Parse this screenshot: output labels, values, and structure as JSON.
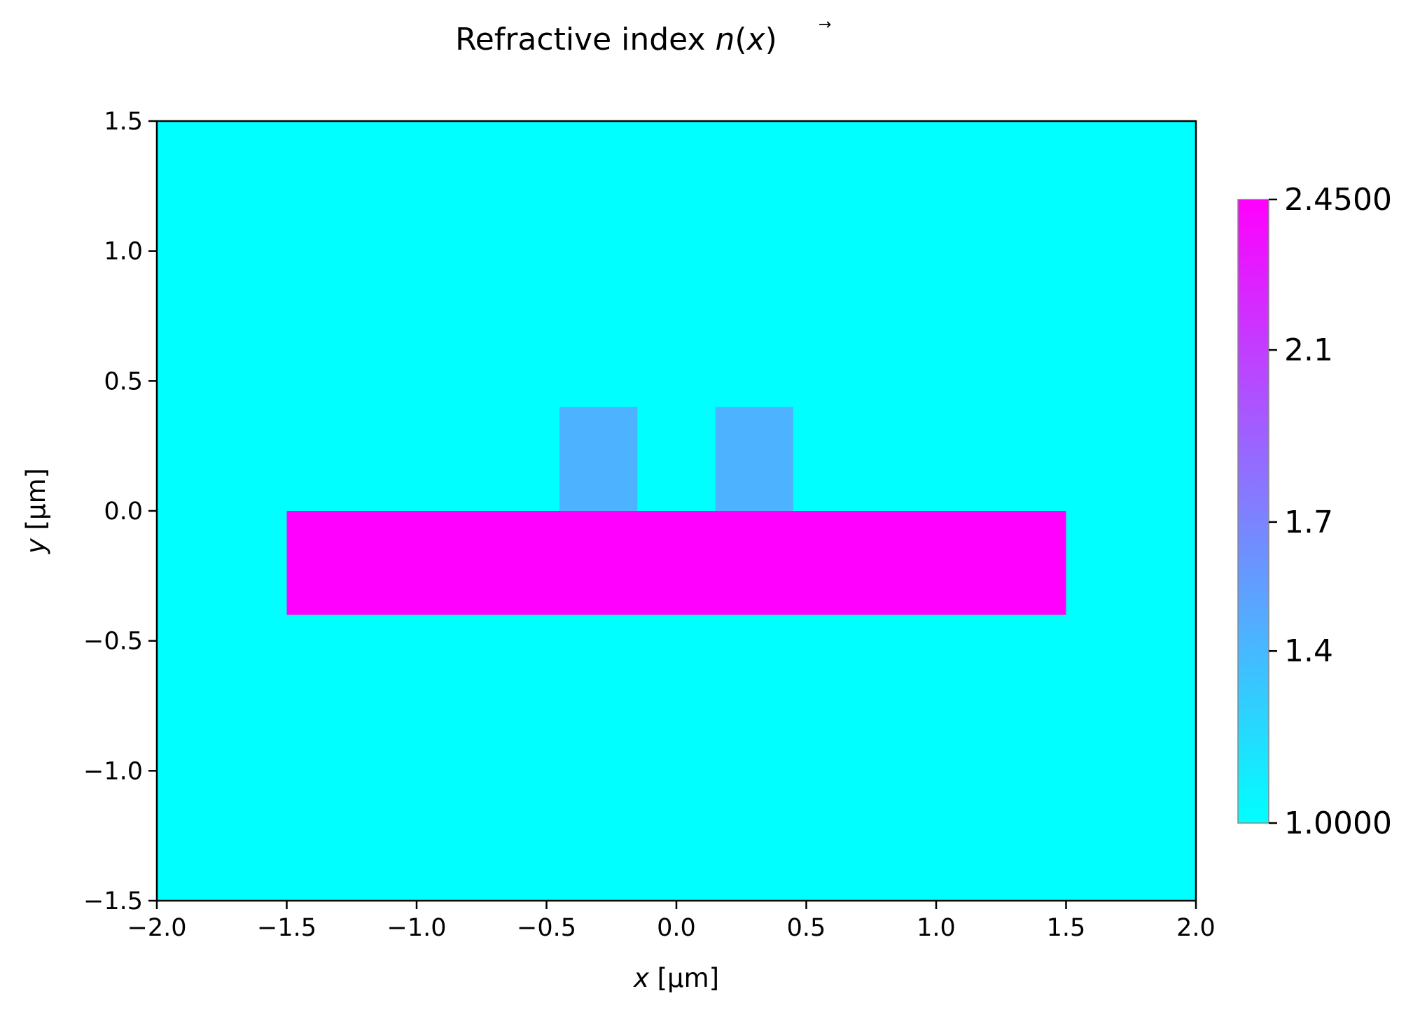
{
  "chart_data": {
    "type": "heatmap",
    "title": "Refractive index",
    "title_math": "n(x⃗)",
    "title_math_parts": {
      "func": "n",
      "open": "(",
      "var": "x",
      "arrow": "→",
      "close": ")"
    },
    "xlabel": {
      "var": "x",
      "unit": " [µm]"
    },
    "ylabel": {
      "var": "y",
      "unit": " [µm]"
    },
    "xlim": [
      -2.0,
      2.0
    ],
    "ylim": [
      -1.5,
      1.5
    ],
    "xticks": [
      -2.0,
      -1.5,
      -1.0,
      -0.5,
      0.0,
      0.5,
      1.0,
      1.5,
      2.0
    ],
    "yticks": [
      -1.5,
      -1.0,
      -0.5,
      0.0,
      0.5,
      1.0,
      1.5
    ],
    "xtick_labels": [
      "−2.0",
      "−1.5",
      "−1.0",
      "−0.5",
      "0.0",
      "0.5",
      "1.0",
      "1.5",
      "2.0"
    ],
    "ytick_labels": [
      "−1.5",
      "−1.0",
      "−0.5",
      "0.0",
      "0.5",
      "1.0",
      "1.5"
    ],
    "colormap": "cool",
    "background_value": 1.0,
    "regions": [
      {
        "name": "slab",
        "x": [
          -1.5,
          1.5
        ],
        "y": [
          -0.4,
          0.0
        ],
        "value": 2.45
      },
      {
        "name": "ridge-left",
        "x": [
          -0.45,
          -0.15
        ],
        "y": [
          0.0,
          0.4
        ],
        "value": 1.44
      },
      {
        "name": "ridge-right",
        "x": [
          0.15,
          0.45
        ],
        "y": [
          0.0,
          0.4
        ],
        "value": 1.44
      }
    ],
    "colorbar": {
      "range": [
        1.0,
        2.45
      ],
      "ticks": [
        1.0,
        1.4,
        1.7,
        2.1,
        2.45
      ],
      "tick_labels": [
        "1.0000",
        "1.4",
        "1.7",
        "2.1",
        "2.4500"
      ]
    },
    "grid": false
  },
  "colors": {
    "cool_low": "#00ffff",
    "cool_high": "#ff00ff",
    "axis": "#000000"
  }
}
